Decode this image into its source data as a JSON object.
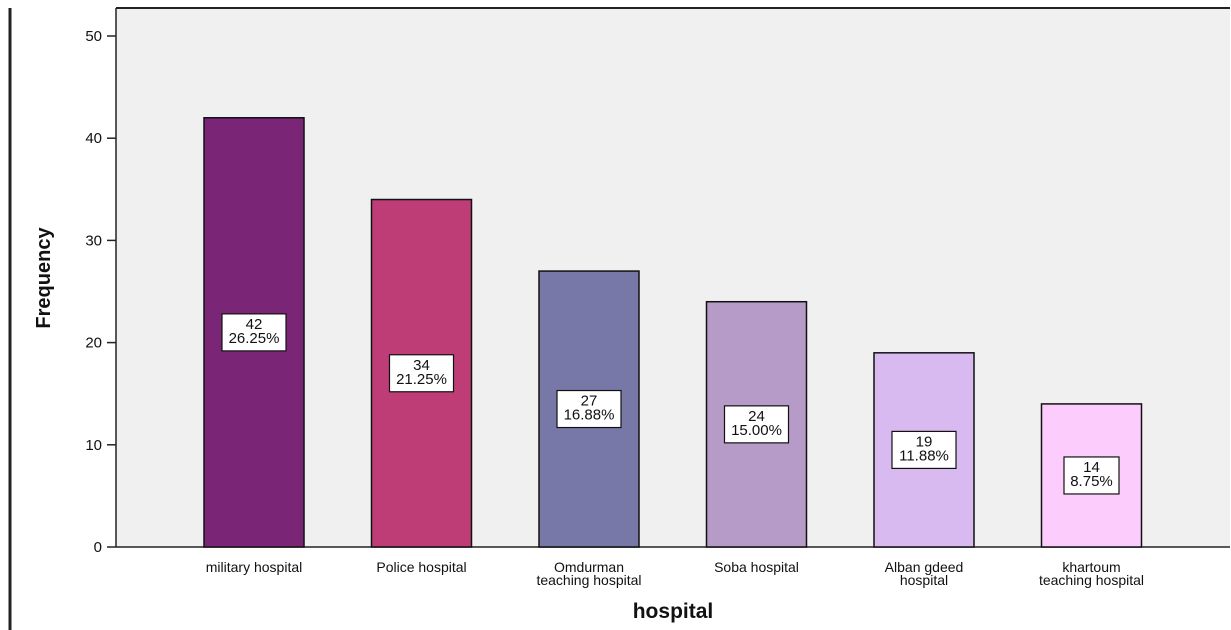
{
  "chart_data": {
    "type": "bar",
    "title": "",
    "xlabel": "hospital",
    "ylabel": "Frequency",
    "ylim": [
      0,
      50
    ],
    "yticks": [
      "0",
      "10",
      "20",
      "30",
      "40",
      "50"
    ],
    "categories": [
      [
        "military hospital"
      ],
      [
        "Police hospital"
      ],
      [
        "Omdurman",
        "teaching hospital"
      ],
      [
        "Soba hospital"
      ],
      [
        "Alban gdeed",
        "hospital"
      ],
      [
        "khartoum",
        "teaching hospital"
      ]
    ],
    "values": [
      42,
      34,
      27,
      24,
      19,
      14
    ],
    "data_labels": [
      [
        "42",
        "26.25%"
      ],
      [
        "34",
        "21.25%"
      ],
      [
        "27",
        "16.88%"
      ],
      [
        "24",
        "15.00%"
      ],
      [
        "19",
        "11.88%"
      ],
      [
        "14",
        "8.75%"
      ]
    ],
    "colors": [
      "#7b2577",
      "#bf3d77",
      "#7878a8",
      "#b69ac8",
      "#d9baf0",
      "#fcccfc"
    ],
    "background": "#f0f0f0",
    "grid": false
  }
}
